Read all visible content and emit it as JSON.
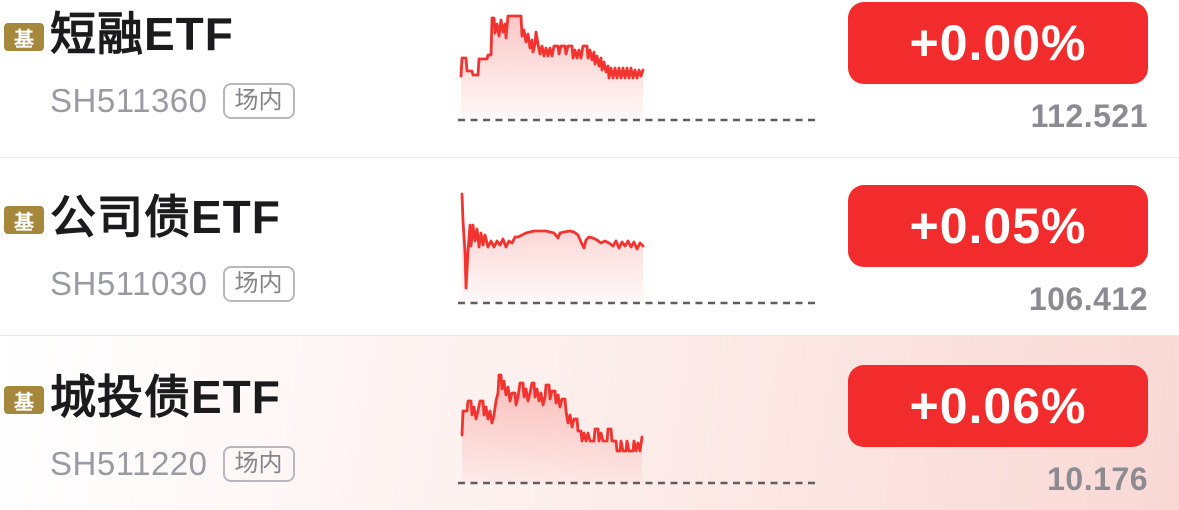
{
  "colors": {
    "accent_red": "#f23430",
    "button_red": "#f22c2c",
    "badge_gold": "#a5883c",
    "name_text": "#1b1b1d",
    "code_text": "#9a9aa2",
    "price_text": "#8b8b91",
    "dash_line": "#5e5e5e",
    "row_highlight_tint": "#f9d8d4",
    "divider": "#e9e9e9",
    "fill_top": "rgba(242,52,48,0.28)",
    "fill_bottom": "rgba(242,52,48,0.03)"
  },
  "list": {
    "rows": [
      {
        "badge": "基",
        "name": "短融ETF",
        "code": "SH511360",
        "market_tag": "场内",
        "change": "+0.00%",
        "price": "112.521",
        "sparkline": {
          "baseline": 112,
          "points": [
            [
              3,
              68
            ],
            [
              4,
              50
            ],
            [
              8,
              50
            ],
            [
              9,
              63
            ],
            [
              14,
              63
            ],
            [
              15,
              67
            ],
            [
              20,
              67
            ],
            [
              21,
              51
            ],
            [
              29,
              51
            ],
            [
              30,
              47
            ],
            [
              33,
              47
            ],
            [
              34,
              10
            ],
            [
              36,
              10
            ],
            [
              37,
              25
            ],
            [
              39,
              16
            ],
            [
              41,
              28
            ],
            [
              43,
              12
            ],
            [
              45,
              24
            ],
            [
              47,
              16
            ],
            [
              48,
              30
            ],
            [
              50,
              8
            ],
            [
              63,
              8
            ],
            [
              64,
              28
            ],
            [
              66,
              22
            ],
            [
              68,
              34
            ],
            [
              70,
              26
            ],
            [
              72,
              40
            ],
            [
              74,
              32
            ],
            [
              75,
              44
            ],
            [
              77,
              36
            ],
            [
              78,
              24
            ],
            [
              80,
              36
            ],
            [
              82,
              46
            ],
            [
              84,
              38
            ],
            [
              86,
              48
            ],
            [
              88,
              40
            ],
            [
              90,
              48
            ],
            [
              92,
              40
            ],
            [
              94,
              48
            ],
            [
              96,
              38
            ],
            [
              100,
              38
            ],
            [
              101,
              46
            ],
            [
              103,
              38
            ],
            [
              107,
              38
            ],
            [
              108,
              46
            ],
            [
              110,
              38
            ],
            [
              114,
              38
            ],
            [
              115,
              50
            ],
            [
              117,
              42
            ],
            [
              119,
              50
            ],
            [
              121,
              42
            ],
            [
              123,
              50
            ],
            [
              125,
              38
            ],
            [
              129,
              38
            ],
            [
              130,
              50
            ],
            [
              132,
              42
            ],
            [
              134,
              52
            ],
            [
              136,
              44
            ],
            [
              137,
              56
            ],
            [
              139,
              48
            ],
            [
              141,
              58
            ],
            [
              143,
              50
            ],
            [
              144,
              62
            ],
            [
              146,
              54
            ],
            [
              148,
              64
            ],
            [
              150,
              58
            ],
            [
              151,
              70
            ],
            [
              153,
              60
            ],
            [
              155,
              70
            ],
            [
              157,
              60
            ],
            [
              159,
              70
            ],
            [
              161,
              60
            ],
            [
              163,
              70
            ],
            [
              165,
              60
            ],
            [
              167,
              70
            ],
            [
              169,
              60
            ],
            [
              171,
              70
            ],
            [
              173,
              60
            ],
            [
              175,
              70
            ],
            [
              177,
              62
            ],
            [
              179,
              70
            ],
            [
              181,
              62
            ],
            [
              183,
              68
            ],
            [
              185,
              62
            ]
          ]
        }
      },
      {
        "badge": "基",
        "name": "公司债ETF",
        "code": "SH511030",
        "market_tag": "场内",
        "change": "+0.05%",
        "price": "106.412",
        "sparkline": {
          "baseline": 112,
          "points": [
            [
              4,
              3
            ],
            [
              5,
              30
            ],
            [
              7,
              60
            ],
            [
              8,
              97
            ],
            [
              10,
              60
            ],
            [
              12,
              34
            ],
            [
              13,
              55
            ],
            [
              15,
              34
            ],
            [
              17,
              50
            ],
            [
              19,
              38
            ],
            [
              21,
              56
            ],
            [
              23,
              42
            ],
            [
              25,
              54
            ],
            [
              27,
              44
            ],
            [
              30,
              56
            ],
            [
              33,
              50
            ],
            [
              36,
              56
            ],
            [
              39,
              50
            ],
            [
              42,
              54
            ],
            [
              45,
              48
            ],
            [
              48,
              56
            ],
            [
              51,
              50
            ],
            [
              54,
              52
            ],
            [
              57,
              46
            ],
            [
              60,
              46
            ],
            [
              64,
              44
            ],
            [
              68,
              42
            ],
            [
              72,
              41
            ],
            [
              76,
              40
            ],
            [
              82,
              40
            ],
            [
              88,
              40
            ],
            [
              92,
              41
            ],
            [
              96,
              42
            ],
            [
              100,
              47
            ],
            [
              102,
              42
            ],
            [
              106,
              41
            ],
            [
              112,
              40
            ],
            [
              116,
              41
            ],
            [
              120,
              44
            ],
            [
              123,
              51
            ],
            [
              126,
              57
            ],
            [
              128,
              49
            ],
            [
              131,
              46
            ],
            [
              135,
              47
            ],
            [
              139,
              49
            ],
            [
              143,
              52
            ],
            [
              147,
              50
            ],
            [
              151,
              52
            ],
            [
              155,
              55
            ],
            [
              158,
              50
            ],
            [
              161,
              57
            ],
            [
              164,
              51
            ],
            [
              167,
              55
            ],
            [
              170,
              50
            ],
            [
              173,
              56
            ],
            [
              176,
              51
            ],
            [
              179,
              58
            ],
            [
              182,
              52
            ],
            [
              185,
              55
            ]
          ]
        }
      },
      {
        "badge": "基",
        "name": "城投债ETF",
        "code": "SH511220",
        "market_tag": "场内",
        "change": "+0.06%",
        "price": "10.176",
        "sparkline": {
          "baseline": 112,
          "points": [
            [
              4,
              64
            ],
            [
              5,
              40
            ],
            [
              9,
              40
            ],
            [
              10,
              30
            ],
            [
              13,
              30
            ],
            [
              14,
              44
            ],
            [
              16,
              36
            ],
            [
              18,
              48
            ],
            [
              20,
              40
            ],
            [
              22,
              30
            ],
            [
              25,
              30
            ],
            [
              26,
              44
            ],
            [
              28,
              36
            ],
            [
              30,
              48
            ],
            [
              32,
              40
            ],
            [
              34,
              52
            ],
            [
              36,
              44
            ],
            [
              38,
              30
            ],
            [
              40,
              22
            ],
            [
              41,
              4
            ],
            [
              43,
              4
            ],
            [
              44,
              18
            ],
            [
              46,
              10
            ],
            [
              48,
              24
            ],
            [
              50,
              16
            ],
            [
              52,
              30
            ],
            [
              54,
              22
            ],
            [
              57,
              22
            ],
            [
              58,
              34
            ],
            [
              60,
              26
            ],
            [
              62,
              12
            ],
            [
              65,
              12
            ],
            [
              66,
              26
            ],
            [
              68,
              18
            ],
            [
              70,
              30
            ],
            [
              72,
              22
            ],
            [
              74,
              12
            ],
            [
              76,
              12
            ],
            [
              77,
              26
            ],
            [
              79,
              18
            ],
            [
              81,
              30
            ],
            [
              83,
              22
            ],
            [
              85,
              34
            ],
            [
              87,
              26
            ],
            [
              88,
              14
            ],
            [
              91,
              14
            ],
            [
              92,
              28
            ],
            [
              94,
              20
            ],
            [
              97,
              20
            ],
            [
              98,
              32
            ],
            [
              100,
              24
            ],
            [
              102,
              36
            ],
            [
              104,
              28
            ],
            [
              107,
              28
            ],
            [
              108,
              40
            ],
            [
              110,
              52
            ],
            [
              112,
              44
            ],
            [
              114,
              56
            ],
            [
              116,
              48
            ],
            [
              119,
              48
            ],
            [
              120,
              60
            ],
            [
              123,
              60
            ],
            [
              124,
              70
            ],
            [
              126,
              62
            ],
            [
              128,
              70
            ],
            [
              130,
              62
            ],
            [
              132,
              70
            ],
            [
              136,
              70
            ],
            [
              137,
              58
            ],
            [
              140,
              58
            ],
            [
              141,
              70
            ],
            [
              143,
              62
            ],
            [
              145,
              70
            ],
            [
              149,
              70
            ],
            [
              150,
              58
            ],
            [
              153,
              58
            ],
            [
              154,
              70
            ],
            [
              158,
              70
            ],
            [
              159,
              80
            ],
            [
              162,
              80
            ],
            [
              163,
              70
            ],
            [
              165,
              80
            ],
            [
              168,
              80
            ],
            [
              169,
              70
            ],
            [
              171,
              80
            ],
            [
              175,
              80
            ],
            [
              176,
              70
            ],
            [
              178,
              80
            ],
            [
              180,
              72
            ],
            [
              182,
              80
            ],
            [
              184,
              66
            ]
          ]
        }
      }
    ]
  }
}
